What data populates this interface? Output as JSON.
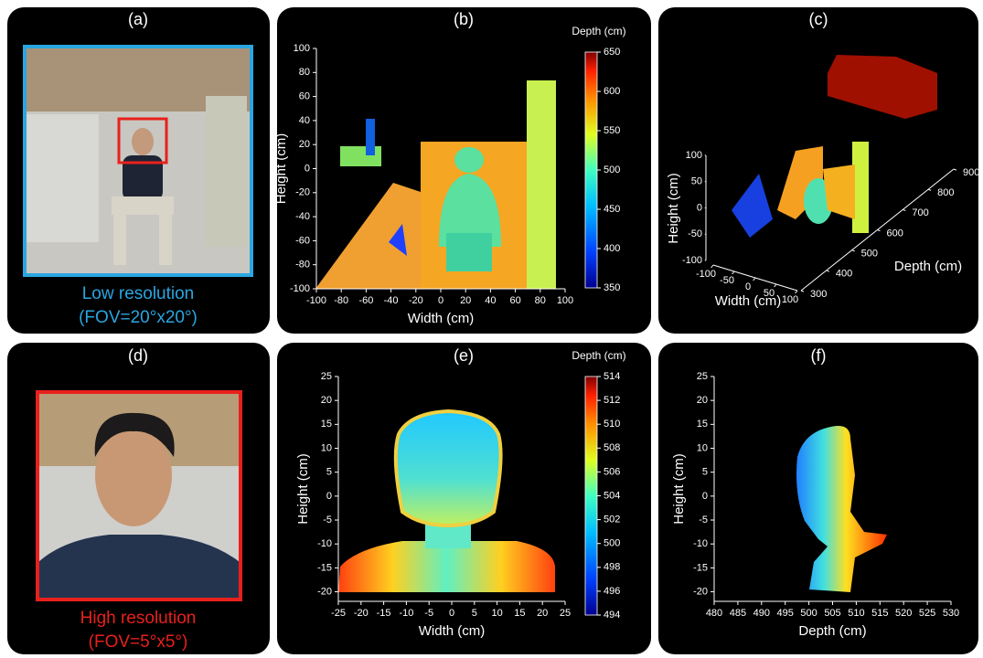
{
  "panels": [
    {
      "label": "(a)",
      "caption": [
        "Low resolution",
        "(FOV=20°x20°)"
      ],
      "caption_color": "#2aa6e0",
      "frame_color": "#2aa6e0"
    },
    {
      "label": "(b)",
      "x_label": "Width (cm)",
      "y_label": "Height (cm)",
      "xlim": [
        -100,
        100
      ],
      "xticks": [
        -100,
        -80,
        -60,
        -40,
        -20,
        0,
        20,
        40,
        60,
        80,
        100
      ],
      "ylim": [
        -100,
        100
      ],
      "yticks": [
        -100,
        -80,
        -60,
        -40,
        -20,
        0,
        20,
        40,
        60,
        80,
        100
      ],
      "colorbar": {
        "title": "Depth (cm)",
        "lim": [
          350,
          650
        ],
        "ticks": [
          350,
          400,
          450,
          500,
          550,
          600,
          650
        ]
      }
    },
    {
      "label": "(c)",
      "x_label": "Width (cm)",
      "y_label": "Depth (cm)",
      "z_label": "Height (cm)",
      "xlim": [
        -100,
        100
      ],
      "xticks": [
        -100,
        -50,
        0,
        50,
        100
      ],
      "ylim": [
        300,
        900
      ],
      "yticks": [
        300,
        400,
        500,
        600,
        700,
        800,
        900
      ],
      "zlim": [
        -100,
        100
      ],
      "zticks": [
        -100,
        -50,
        0,
        50,
        100
      ]
    },
    {
      "label": "(d)",
      "caption": [
        "High resolution",
        "(FOV=5°x5°)"
      ],
      "caption_color": "#e8201c",
      "frame_color": "#e8201c"
    },
    {
      "label": "(e)",
      "x_label": "Width (cm)",
      "y_label": "Height (cm)",
      "xlim": [
        -25,
        25
      ],
      "xticks": [
        -25,
        -20,
        -15,
        -10,
        -5,
        0,
        5,
        10,
        15,
        20,
        25
      ],
      "ylim": [
        -22,
        25
      ],
      "yticks": [
        -20,
        -15,
        -10,
        -5,
        0,
        5,
        10,
        15,
        20,
        25
      ],
      "colorbar": {
        "title": "Depth (cm)",
        "lim": [
          494,
          514
        ],
        "ticks": [
          494,
          496,
          498,
          500,
          502,
          504,
          506,
          508,
          510,
          512,
          514
        ]
      }
    },
    {
      "label": "(f)",
      "x_label": "Depth (cm)",
      "y_label": "Height (cm)",
      "xlim": [
        480,
        530
      ],
      "xticks": [
        480,
        485,
        490,
        495,
        500,
        505,
        510,
        515,
        520,
        525,
        530
      ],
      "ylim": [
        -22,
        25
      ],
      "yticks": [
        -20,
        -15,
        -10,
        -5,
        0,
        5,
        10,
        15,
        20,
        25
      ]
    }
  ]
}
